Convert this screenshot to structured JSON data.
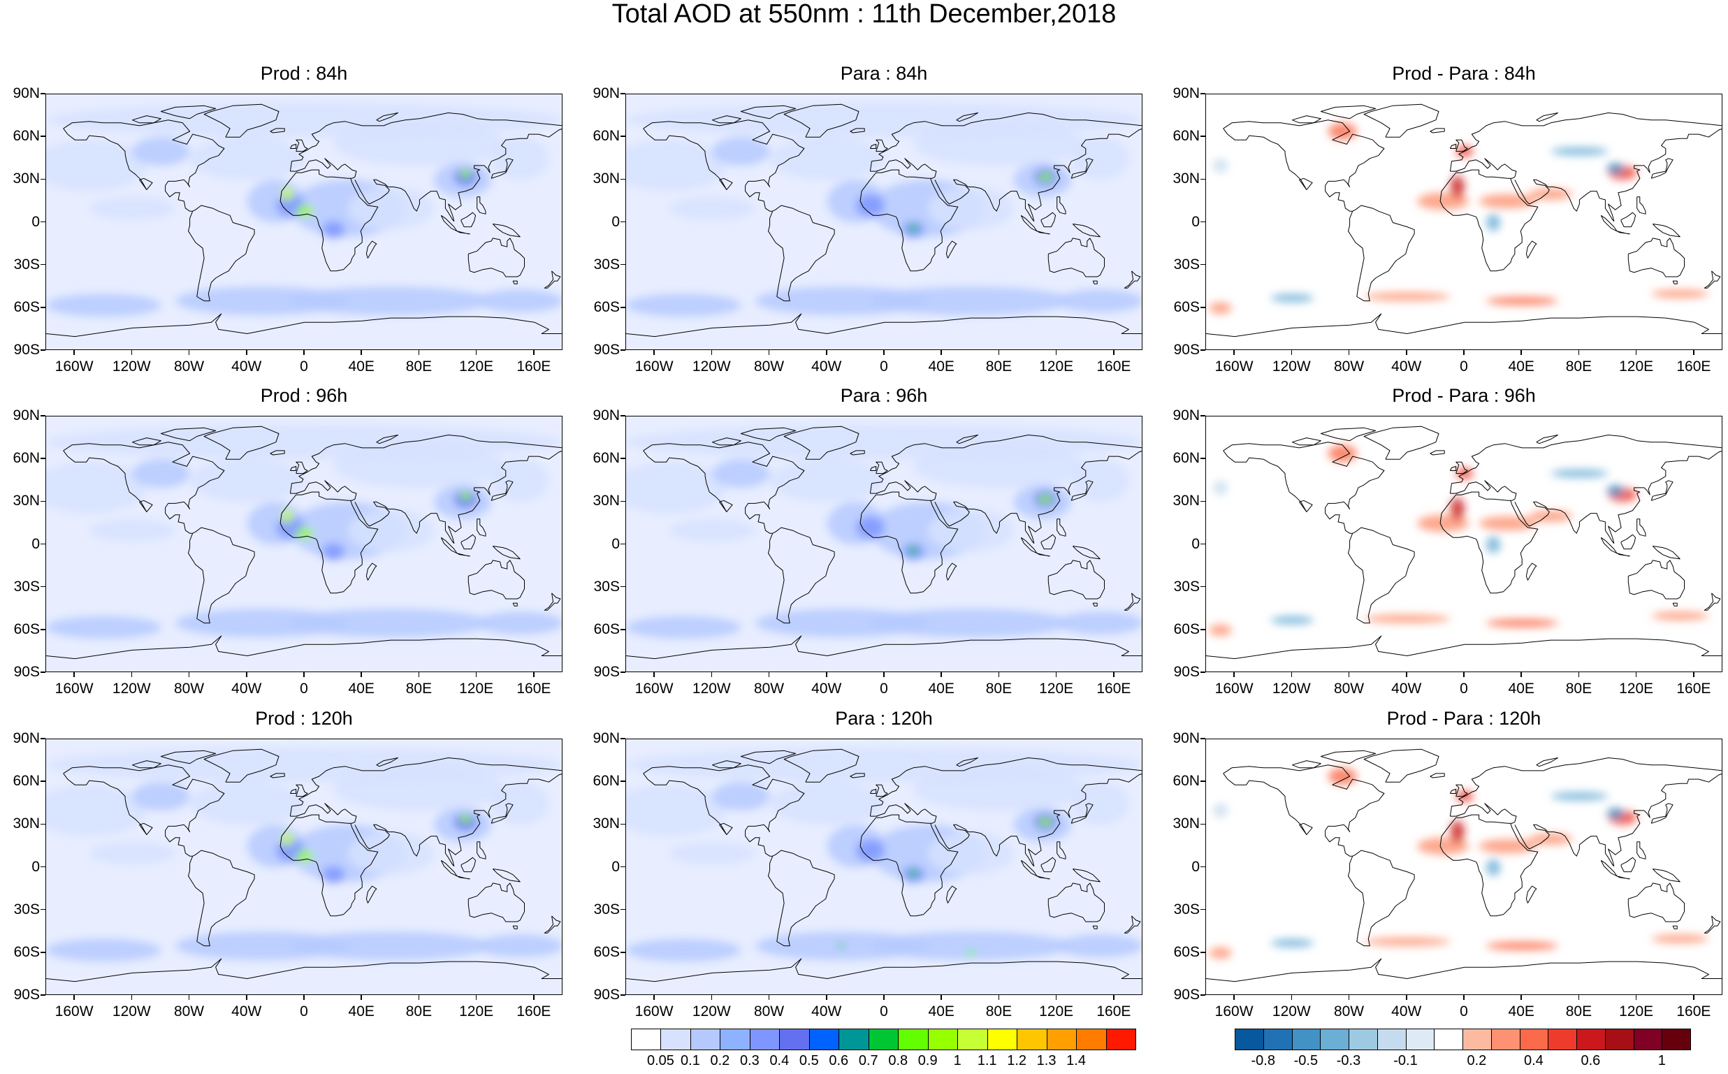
{
  "title": "Total AOD at 550nm : 11th December,2018",
  "panels": [
    {
      "title": "Prod : 84h",
      "kind": "aod",
      "lead": 84
    },
    {
      "title": "Para : 84h",
      "kind": "aod",
      "lead": 84
    },
    {
      "title": "Prod - Para : 84h",
      "kind": "diff",
      "lead": 84
    },
    {
      "title": "Prod : 96h",
      "kind": "aod",
      "lead": 96
    },
    {
      "title": "Para : 96h",
      "kind": "aod",
      "lead": 96
    },
    {
      "title": "Prod - Para : 96h",
      "kind": "diff",
      "lead": 96
    },
    {
      "title": "Prod : 120h",
      "kind": "aod",
      "lead": 120
    },
    {
      "title": "Para : 120h",
      "kind": "aod",
      "lead": 120
    },
    {
      "title": "Prod - Para : 120h",
      "kind": "diff",
      "lead": 120
    }
  ],
  "lat_ticks": [
    "90N",
    "60N",
    "30N",
    "0",
    "30S",
    "60S",
    "90S"
  ],
  "lon_ticks": [
    "160W",
    "120W",
    "80W",
    "40W",
    "0",
    "40E",
    "80E",
    "120E",
    "160E"
  ],
  "aod_colorbar": {
    "colors": [
      "#ffffff",
      "#d6e2ff",
      "#b5c9ff",
      "#8eb2ff",
      "#7f96ff",
      "#6370f0",
      "#0063ff",
      "#009696",
      "#00c633",
      "#63ff00",
      "#96ff00",
      "#c6ff33",
      "#ffff00",
      "#ffc600",
      "#ffa000",
      "#ff7c00",
      "#ff1900"
    ],
    "labels": [
      "0.05",
      "0.1",
      "0.2",
      "0.3",
      "0.4",
      "0.5",
      "0.6",
      "0.7",
      "0.8",
      "0.9",
      "1",
      "1.1",
      "1.2",
      "1.3",
      "1.4"
    ]
  },
  "diff_colorbar": {
    "colors": [
      "#08589e",
      "#2171b5",
      "#4292c6",
      "#6baed6",
      "#9ecae1",
      "#c6dbef",
      "#deebf7",
      "#ffffff",
      "#fcbba1",
      "#fc9272",
      "#fb6a4a",
      "#ef3b2c",
      "#cb181d",
      "#a50f15",
      "#800026",
      "#67000d"
    ],
    "labels": [
      "-0.8",
      "-0.5",
      "-0.3",
      "-0.1",
      "0.2",
      "0.4",
      "0.6",
      "1"
    ]
  }
}
